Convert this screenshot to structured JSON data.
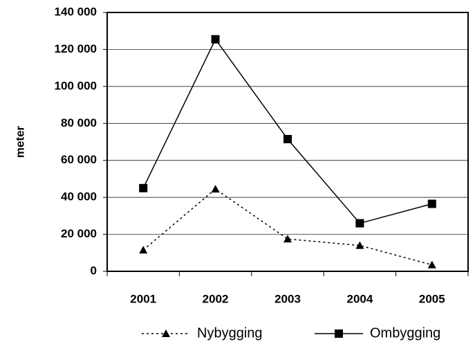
{
  "chart_data": {
    "type": "line",
    "y_label": "meter",
    "categories": [
      "2001",
      "2002",
      "2003",
      "2004",
      "2005"
    ],
    "series": [
      {
        "name": "Nybygging",
        "color": "#000000",
        "line_style": "dotted",
        "marker": "triangle",
        "values": [
          11500,
          44500,
          17500,
          14000,
          3500
        ]
      },
      {
        "name": "Ombygging",
        "color": "#000000",
        "line_style": "solid",
        "marker": "square",
        "values": [
          45000,
          125500,
          71500,
          26000,
          36500
        ]
      }
    ],
    "ylim": [
      0,
      140000
    ],
    "yticks": [
      {
        "value": 0,
        "label": "0"
      },
      {
        "value": 20000,
        "label": "20 000"
      },
      {
        "value": 40000,
        "label": "40 000"
      },
      {
        "value": 60000,
        "label": "60 000"
      },
      {
        "value": 80000,
        "label": "80 000"
      },
      {
        "value": 100000,
        "label": "100 000"
      },
      {
        "value": 120000,
        "label": "120 000"
      },
      {
        "value": 140000,
        "label": "140 000"
      }
    ],
    "grid": true,
    "legend": "bottom"
  }
}
